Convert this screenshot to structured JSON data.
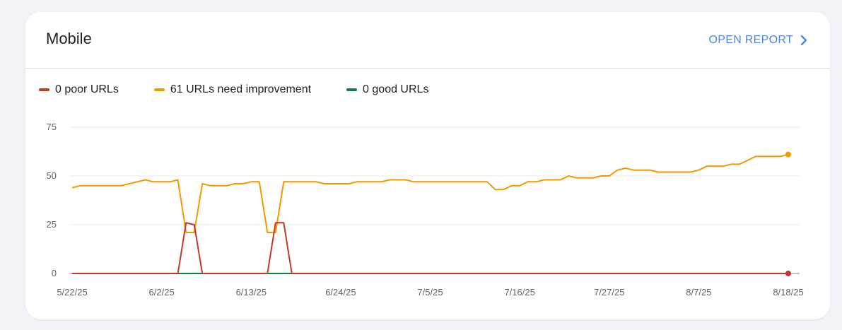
{
  "card": {
    "title": "Mobile",
    "open_report_label": "OPEN REPORT"
  },
  "colors": {
    "poor": "#c0392b",
    "needs_improvement": "#f29900",
    "good": "#0b8043",
    "accent": "#4a86e8"
  },
  "chart_data": {
    "type": "line",
    "x_ticks": [
      "5/22/25",
      "6/2/25",
      "6/13/25",
      "6/24/25",
      "7/5/25",
      "7/16/25",
      "7/27/25",
      "8/7/25",
      "8/18/25"
    ],
    "y_ticks": [
      0,
      25,
      50,
      75
    ],
    "ylim": [
      0,
      75
    ],
    "x_start": "5/22/25",
    "x_end": "8/18/25",
    "grid": true,
    "legend_position": "top-left",
    "series": [
      {
        "key": "poor",
        "name": "0 poor URLs",
        "color": "#c0392b",
        "points": [
          [
            "5/22/25",
            0
          ],
          [
            "6/4/25",
            0
          ],
          [
            "6/5/25",
            26
          ],
          [
            "6/6/25",
            25
          ],
          [
            "6/7/25",
            0
          ],
          [
            "6/15/25",
            0
          ],
          [
            "6/16/25",
            26
          ],
          [
            "6/17/25",
            26
          ],
          [
            "6/18/25",
            0
          ],
          [
            "8/18/25",
            0
          ]
        ]
      },
      {
        "key": "needs_improvement",
        "name": "61 URLs need improvement",
        "color": "#f29900",
        "points": [
          [
            "5/22/25",
            44
          ],
          [
            "5/23/25",
            45
          ],
          [
            "5/28/25",
            45
          ],
          [
            "5/31/25",
            48
          ],
          [
            "6/1/25",
            47
          ],
          [
            "6/3/25",
            47
          ],
          [
            "6/4/25",
            48
          ],
          [
            "6/5/25",
            21
          ],
          [
            "6/6/25",
            21
          ],
          [
            "6/7/25",
            46
          ],
          [
            "6/8/25",
            45
          ],
          [
            "6/10/25",
            45
          ],
          [
            "6/11/25",
            46
          ],
          [
            "6/12/25",
            46
          ],
          [
            "6/13/25",
            47
          ],
          [
            "6/14/25",
            47
          ],
          [
            "6/15/25",
            21
          ],
          [
            "6/16/25",
            21
          ],
          [
            "6/17/25",
            47
          ],
          [
            "6/21/25",
            47
          ],
          [
            "6/22/25",
            46
          ],
          [
            "6/25/25",
            46
          ],
          [
            "6/26/25",
            47
          ],
          [
            "6/29/25",
            47
          ],
          [
            "6/30/25",
            48
          ],
          [
            "7/2/25",
            48
          ],
          [
            "7/3/25",
            47
          ],
          [
            "7/12/25",
            47
          ],
          [
            "7/13/25",
            43
          ],
          [
            "7/14/25",
            43
          ],
          [
            "7/15/25",
            45
          ],
          [
            "7/16/25",
            45
          ],
          [
            "7/17/25",
            47
          ],
          [
            "7/18/25",
            47
          ],
          [
            "7/19/25",
            48
          ],
          [
            "7/21/25",
            48
          ],
          [
            "7/22/25",
            50
          ],
          [
            "7/23/25",
            49
          ],
          [
            "7/25/25",
            49
          ],
          [
            "7/26/25",
            50
          ],
          [
            "7/27/25",
            50
          ],
          [
            "7/28/25",
            53
          ],
          [
            "7/29/25",
            54
          ],
          [
            "7/30/25",
            53
          ],
          [
            "8/1/25",
            53
          ],
          [
            "8/2/25",
            52
          ],
          [
            "8/6/25",
            52
          ],
          [
            "8/7/25",
            53
          ],
          [
            "8/8/25",
            55
          ],
          [
            "8/10/25",
            55
          ],
          [
            "8/11/25",
            56
          ],
          [
            "8/12/25",
            56
          ],
          [
            "8/14/25",
            60
          ],
          [
            "8/17/25",
            60
          ],
          [
            "8/18/25",
            61
          ]
        ]
      },
      {
        "key": "good",
        "name": "0 good URLs",
        "color": "#0b8043",
        "points": [
          [
            "5/22/25",
            0
          ],
          [
            "8/18/25",
            0
          ]
        ]
      }
    ]
  }
}
